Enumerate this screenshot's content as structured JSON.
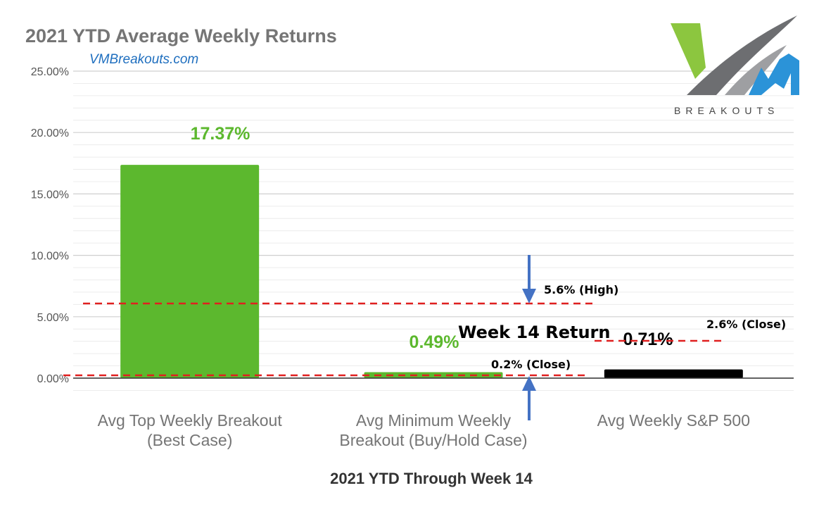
{
  "chart_data": {
    "type": "bar",
    "title": "2021 YTD Average Weekly Returns",
    "subtitle": "VMBreakouts.com",
    "xlabel": "2021 YTD Through Week 14",
    "ylabel": "",
    "ylim": [
      0,
      25
    ],
    "yticks": [
      "0.00%",
      "5.00%",
      "10.00%",
      "15.00%",
      "20.00%",
      "25.00%"
    ],
    "categories": [
      [
        "Avg Top Weekly Breakout",
        "(Best Case)"
      ],
      [
        "Avg Minimum Weekly",
        "Breakout (Buy/Hold Case)"
      ],
      [
        "Avg Weekly S&P 500"
      ]
    ],
    "values": [
      17.37,
      0.49,
      0.71
    ],
    "data_labels": [
      "17.37%",
      "0.49%",
      "0.71%"
    ],
    "bar_colors": [
      "#5cb82e",
      "#5cb82e",
      "#000000"
    ],
    "label_colors": [
      "#5cb82e",
      "#5cb82e",
      "#000000"
    ],
    "grid": true,
    "annotations": {
      "week_return_label": "Week 14 Return",
      "high_label": "5.6% (High)",
      "close_label": "0.2% (Close)",
      "sp_close_label": "2.6% (Close)"
    },
    "logo_text": "BREAKOUTS",
    "colors": {
      "green": "#5cb82e",
      "red_dash": "#e02020",
      "arrow": "#4472c4"
    }
  }
}
